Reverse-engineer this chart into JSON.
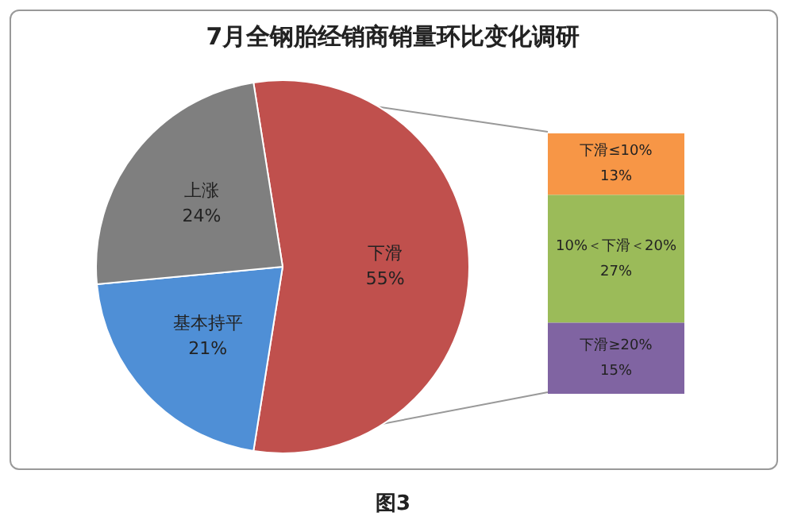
{
  "chart_data": [
    {
      "type": "pie",
      "title": "7月全钢胎经销商销量环比变化调研",
      "annotations": [
        "图3"
      ],
      "categories": [
        "下滑",
        "基本持平",
        "上涨"
      ],
      "values": [
        55,
        21,
        24
      ],
      "value_labels": [
        "55%",
        "21%",
        "24%"
      ],
      "colors": [
        "#c0504d",
        "#4f8fd6",
        "#7f7f7f"
      ],
      "legend": false
    },
    {
      "type": "bar",
      "stacked": true,
      "categories": [
        null
      ],
      "legend": false,
      "series": [
        {
          "name": "下滑≥20%",
          "color": "#8064a2",
          "values": [
            15
          ],
          "value_labels": [
            "15%"
          ]
        },
        {
          "name": "10%＜下滑＜20%",
          "color": "#9bbb59",
          "values": [
            27
          ],
          "value_labels": [
            "27%"
          ]
        },
        {
          "name": "下滑≤10%",
          "color": "#f79646",
          "values": [
            13
          ],
          "value_labels": [
            "13%"
          ]
        }
      ]
    }
  ]
}
